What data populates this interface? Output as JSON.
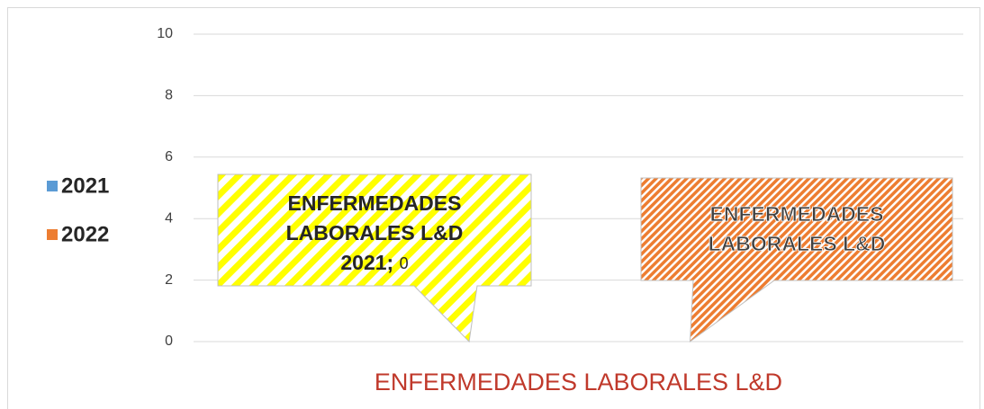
{
  "chart_data": {
    "type": "bar",
    "categories": [
      "ENFERMEDADES LABORALES L&D"
    ],
    "series": [
      {
        "name": "2021",
        "color": "#5b9bd5",
        "values": [
          0
        ]
      },
      {
        "name": "2022",
        "color": "#ed7d31",
        "values": [
          0
        ]
      }
    ],
    "ylim": [
      0,
      10
    ],
    "yticks": [
      0,
      2,
      4,
      6,
      8,
      10
    ],
    "grid": true,
    "legend": "left",
    "annotations": [
      {
        "lines": [
          "ENFERMEDADES",
          "LABORALES L&D",
          "2021;"
        ],
        "tail": "0",
        "color": "#ffff00"
      },
      {
        "lines": [
          "ENFERMEDADES",
          "LABORALES L&D"
        ],
        "color": "#ed7d31"
      }
    ]
  }
}
